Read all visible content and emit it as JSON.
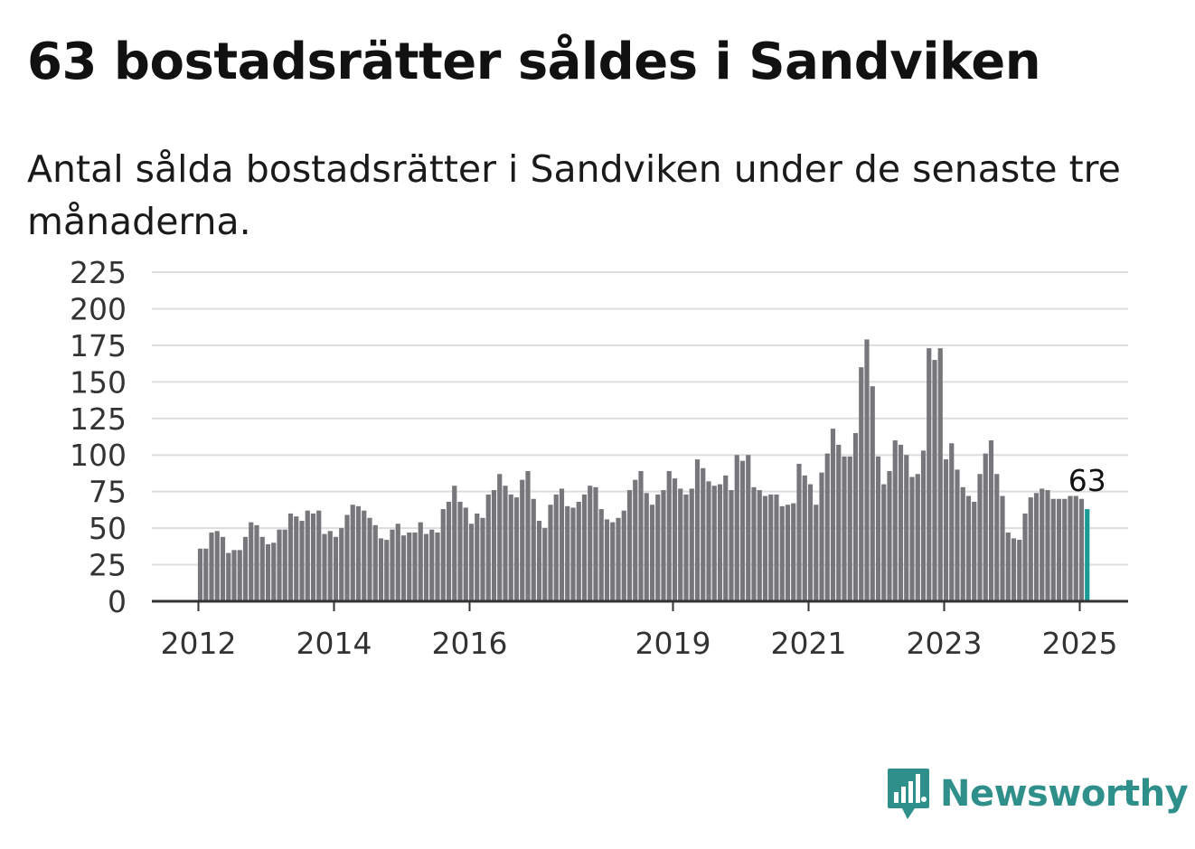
{
  "title": "63 bostadsrätter såldes i Sandviken",
  "subtitle": "Antal sålda bostadsrätter i Sandviken under de senaste tre månaderna.",
  "brand": {
    "name": "Newsworthy",
    "icon": "newsworthy-logo-icon"
  },
  "colors": {
    "bar": "#77777b",
    "highlight": "#1a9a94",
    "grid": "#dddddd",
    "axis": "#333333",
    "brand": "#2f8f8b"
  },
  "chart_data": {
    "type": "bar",
    "title": "63 bostadsrätter såldes i Sandviken",
    "subtitle": "Antal sålda bostadsrätter i Sandviken under de senaste tre månaderna.",
    "xlabel": "",
    "ylabel": "",
    "ylim": [
      0,
      225
    ],
    "yticks": [
      0,
      25,
      50,
      75,
      100,
      125,
      150,
      175,
      200,
      225
    ],
    "xticks": [
      "2012",
      "2014",
      "2016",
      "2019",
      "2021",
      "2023",
      "2025"
    ],
    "grid": true,
    "x_start": "2012-01",
    "x_interval": "monthly",
    "annotation": {
      "label": "63",
      "value": 63,
      "point": "last"
    },
    "values": [
      36,
      36,
      47,
      48,
      44,
      33,
      35,
      35,
      44,
      54,
      52,
      44,
      39,
      40,
      49,
      49,
      60,
      58,
      55,
      62,
      60,
      62,
      46,
      48,
      44,
      50,
      59,
      66,
      65,
      62,
      57,
      52,
      43,
      42,
      49,
      53,
      45,
      47,
      47,
      54,
      46,
      49,
      47,
      63,
      68,
      79,
      68,
      64,
      53,
      60,
      57,
      73,
      76,
      87,
      79,
      73,
      71,
      83,
      89,
      70,
      55,
      50,
      66,
      73,
      77,
      65,
      64,
      68,
      73,
      79,
      78,
      63,
      56,
      54,
      57,
      62,
      76,
      83,
      89,
      74,
      66,
      73,
      76,
      89,
      84,
      77,
      73,
      77,
      97,
      91,
      82,
      79,
      80,
      86,
      76,
      100,
      96,
      100,
      78,
      76,
      72,
      73,
      73,
      65,
      66,
      67,
      94,
      86,
      80,
      66,
      88,
      101,
      118,
      107,
      99,
      99,
      115,
      160,
      179,
      147,
      99,
      80,
      89,
      110,
      107,
      100,
      85,
      87,
      103,
      173,
      165,
      173,
      97,
      108,
      90,
      78,
      72,
      68,
      87,
      101,
      110,
      87,
      72,
      47,
      43,
      42,
      60,
      71,
      74,
      77,
      76,
      70,
      70,
      70,
      72,
      72,
      70,
      63
    ]
  }
}
